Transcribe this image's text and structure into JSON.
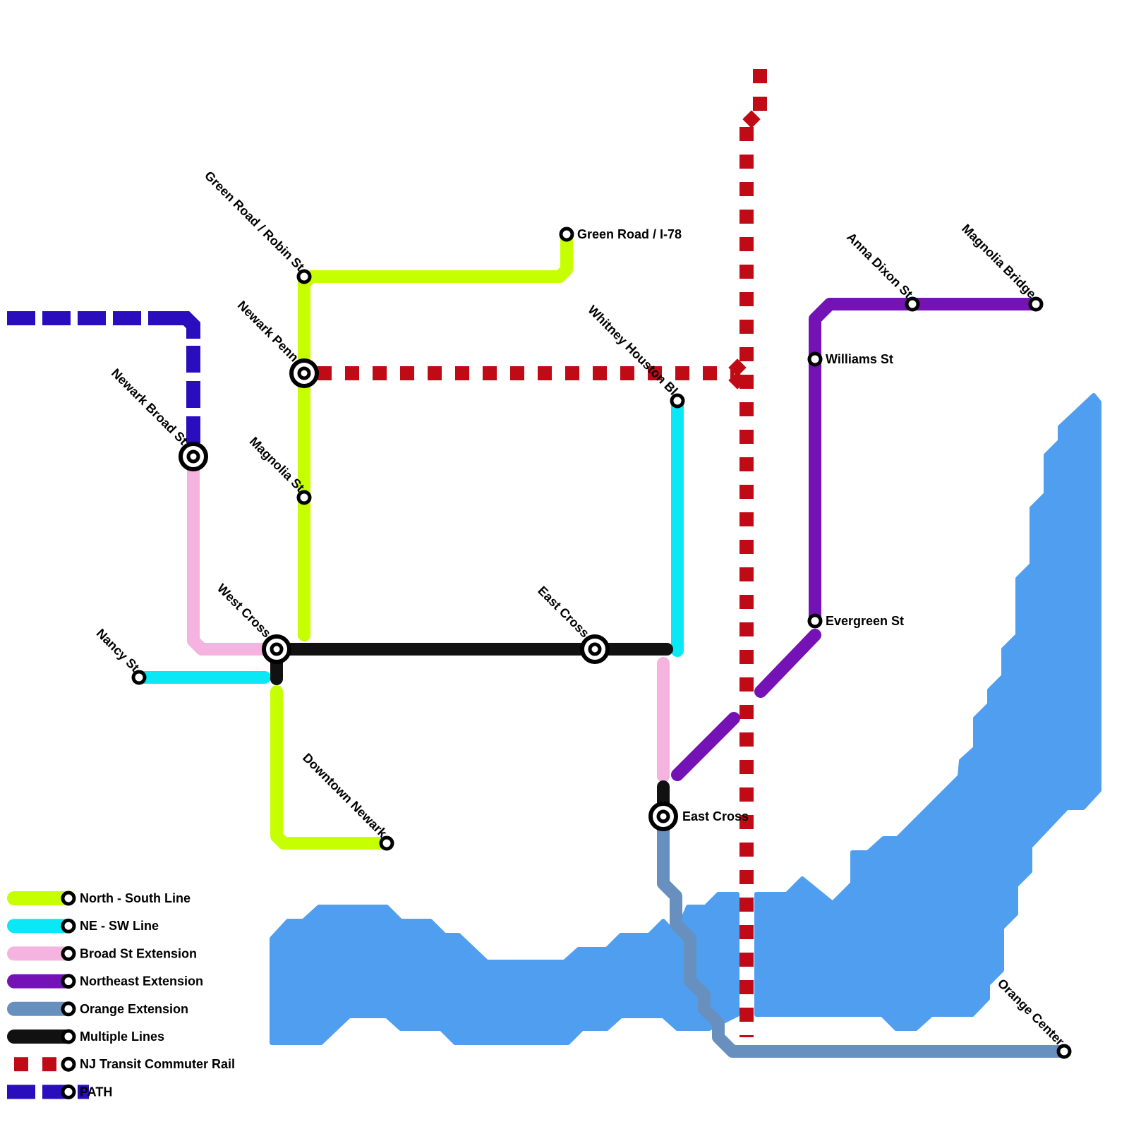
{
  "colors": {
    "water": "#509ef0",
    "north_south": "#c6ff00",
    "ne_sw": "#0ae8f5",
    "broad_st": "#f5b3e0",
    "northeast": "#7412b5",
    "orange": "#6790bf",
    "multiple": "#111111",
    "nj_transit": "#c00b16",
    "path": "#2a0dbd"
  },
  "stations": [
    {
      "name": "Green Road / Robin St",
      "type": "stop",
      "label_style": "diagonal"
    },
    {
      "name": "Green Road / I-78",
      "type": "stop",
      "label_style": "right"
    },
    {
      "name": "Newark Penn",
      "type": "interchange",
      "label_style": "diagonal"
    },
    {
      "name": "Newark Broad St",
      "type": "interchange",
      "label_style": "diagonal"
    },
    {
      "name": "Magnolia St",
      "type": "stop",
      "label_style": "diagonal"
    },
    {
      "name": "West Cross",
      "type": "interchange",
      "label_style": "diagonal"
    },
    {
      "name": "Nancy St",
      "type": "stop",
      "label_style": "diagonal"
    },
    {
      "name": "East Cross",
      "type": "interchange",
      "label_style": "diagonal"
    },
    {
      "name": "East Cross",
      "type": "interchange",
      "label_style": "right"
    },
    {
      "name": "Downtown Newark",
      "type": "stop",
      "label_style": "diagonal"
    },
    {
      "name": "Whitney Houston Bl",
      "type": "stop",
      "label_style": "diagonal"
    },
    {
      "name": "Williams St",
      "type": "stop",
      "label_style": "right"
    },
    {
      "name": "Evergreen St",
      "type": "stop",
      "label_style": "right"
    },
    {
      "name": "Anna Dixon St",
      "type": "stop",
      "label_style": "diagonal"
    },
    {
      "name": "Magnolia Bridge",
      "type": "stop",
      "label_style": "diagonal"
    },
    {
      "name": "Orange Center",
      "type": "stop",
      "label_style": "diagonal"
    }
  ],
  "legend": [
    {
      "label": "North - South Line",
      "line": "north_south",
      "style": "solid"
    },
    {
      "label": "NE - SW Line",
      "line": "ne_sw",
      "style": "solid"
    },
    {
      "label": "Broad St Extension",
      "line": "broad_st",
      "style": "solid"
    },
    {
      "label": "Northeast Extension",
      "line": "northeast",
      "style": "solid"
    },
    {
      "label": "Orange Extension",
      "line": "orange",
      "style": "solid"
    },
    {
      "label": "Multiple Lines",
      "line": "multiple",
      "style": "solid"
    },
    {
      "label": "NJ Transit Commuter Rail",
      "line": "nj_transit",
      "style": "dashed"
    },
    {
      "label": "PATH",
      "line": "path",
      "style": "dashed"
    }
  ]
}
